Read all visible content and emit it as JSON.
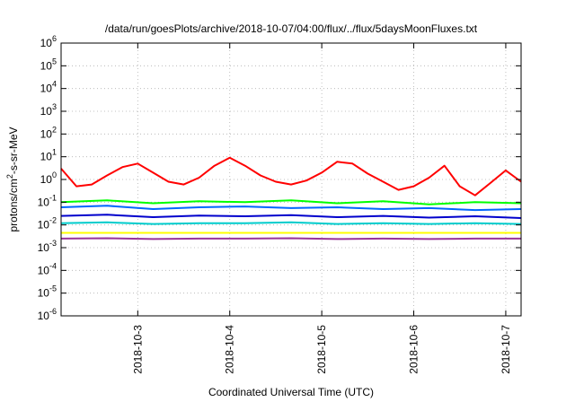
{
  "chart_data": {
    "type": "line",
    "title": "/data/run/goesPlots/archive/2018-10-07/04:00/flux/../flux/5daysMoonFluxes.txt",
    "xlabel": "Coordinated Universal Time (UTC)",
    "ylabel_parts": {
      "pre": "protons/cm",
      "sup": "2",
      "post": "-s-sr-MeV"
    },
    "x_scale": "time",
    "xlim": [
      "2018-10-02T04:00",
      "2018-10-07T04:00"
    ],
    "x_ticks": [
      {
        "date": "2018-10-03T00:00",
        "label": "2018-10-3"
      },
      {
        "date": "2018-10-04T00:00",
        "label": "2018-10-4"
      },
      {
        "date": "2018-10-05T00:00",
        "label": "2018-10-5"
      },
      {
        "date": "2018-10-06T00:00",
        "label": "2018-10-6"
      },
      {
        "date": "2018-10-07T00:00",
        "label": "2018-10-7"
      }
    ],
    "y_scale": "log",
    "ylim": [
      1e-06,
      1000000.0
    ],
    "y_ticks": [
      {
        "value": 1e-06,
        "base": "10",
        "exp": "-6"
      },
      {
        "value": 1e-05,
        "base": "10",
        "exp": "-5"
      },
      {
        "value": 0.0001,
        "base": "10",
        "exp": "-4"
      },
      {
        "value": 0.001,
        "base": "10",
        "exp": "-3"
      },
      {
        "value": 0.01,
        "base": "10",
        "exp": "-2"
      },
      {
        "value": 0.1,
        "base": "10",
        "exp": "-1"
      },
      {
        "value": 1.0,
        "base": "10",
        "exp": "0"
      },
      {
        "value": 10.0,
        "base": "10",
        "exp": "1"
      },
      {
        "value": 100.0,
        "base": "10",
        "exp": "2"
      },
      {
        "value": 1000.0,
        "base": "10",
        "exp": "3"
      },
      {
        "value": 10000.0,
        "base": "10",
        "exp": "4"
      },
      {
        "value": 100000.0,
        "base": "10",
        "exp": "5"
      },
      {
        "value": 1000000.0,
        "base": "10",
        "exp": "6"
      }
    ],
    "grid": true,
    "series": [
      {
        "color": "#ff0000",
        "x": [
          "2018-10-02T04:00",
          "2018-10-02T08:00",
          "2018-10-02T12:00",
          "2018-10-02T16:00",
          "2018-10-02T20:00",
          "2018-10-03T00:00",
          "2018-10-03T04:00",
          "2018-10-03T08:00",
          "2018-10-03T12:00",
          "2018-10-03T16:00",
          "2018-10-03T20:00",
          "2018-10-04T00:00",
          "2018-10-04T04:00",
          "2018-10-04T08:00",
          "2018-10-04T12:00",
          "2018-10-04T16:00",
          "2018-10-04T20:00",
          "2018-10-05T00:00",
          "2018-10-05T04:00",
          "2018-10-05T08:00",
          "2018-10-05T12:00",
          "2018-10-05T16:00",
          "2018-10-05T20:00",
          "2018-10-06T00:00",
          "2018-10-06T04:00",
          "2018-10-06T08:00",
          "2018-10-06T12:00",
          "2018-10-06T16:00",
          "2018-10-06T20:00",
          "2018-10-07T00:00",
          "2018-10-07T04:00"
        ],
        "y": [
          3.0,
          0.5,
          0.6,
          1.5,
          3.5,
          5.0,
          2.0,
          0.8,
          0.6,
          1.2,
          4.0,
          9.0,
          4.0,
          1.5,
          0.8,
          0.6,
          0.9,
          2.0,
          6.0,
          5.0,
          1.8,
          0.8,
          0.35,
          0.5,
          1.2,
          4.0,
          0.5,
          0.2,
          0.7,
          2.5,
          0.8
        ]
      },
      {
        "color": "#00ff00",
        "x": [
          "2018-10-02T04:00",
          "2018-10-02T16:00",
          "2018-10-03T04:00",
          "2018-10-03T16:00",
          "2018-10-04T04:00",
          "2018-10-04T16:00",
          "2018-10-05T04:00",
          "2018-10-05T16:00",
          "2018-10-06T04:00",
          "2018-10-06T16:00",
          "2018-10-07T04:00"
        ],
        "y": [
          0.1,
          0.12,
          0.09,
          0.11,
          0.1,
          0.12,
          0.09,
          0.11,
          0.08,
          0.1,
          0.09
        ]
      },
      {
        "color": "#0066ff",
        "x": [
          "2018-10-02T04:00",
          "2018-10-02T16:00",
          "2018-10-03T04:00",
          "2018-10-03T16:00",
          "2018-10-04T04:00",
          "2018-10-04T16:00",
          "2018-10-05T04:00",
          "2018-10-05T16:00",
          "2018-10-06T04:00",
          "2018-10-06T16:00",
          "2018-10-07T04:00"
        ],
        "y": [
          0.06,
          0.07,
          0.05,
          0.06,
          0.065,
          0.055,
          0.06,
          0.05,
          0.055,
          0.045,
          0.05
        ]
      },
      {
        "color": "#0000cc",
        "x": [
          "2018-10-02T04:00",
          "2018-10-02T16:00",
          "2018-10-03T04:00",
          "2018-10-03T16:00",
          "2018-10-04T04:00",
          "2018-10-04T16:00",
          "2018-10-05T04:00",
          "2018-10-05T16:00",
          "2018-10-06T04:00",
          "2018-10-06T16:00",
          "2018-10-07T04:00"
        ],
        "y": [
          0.025,
          0.028,
          0.022,
          0.026,
          0.024,
          0.027,
          0.022,
          0.025,
          0.021,
          0.024,
          0.02
        ]
      },
      {
        "color": "#00cccc",
        "x": [
          "2018-10-02T04:00",
          "2018-10-02T16:00",
          "2018-10-03T04:00",
          "2018-10-03T16:00",
          "2018-10-04T04:00",
          "2018-10-04T16:00",
          "2018-10-05T04:00",
          "2018-10-05T16:00",
          "2018-10-06T04:00",
          "2018-10-06T16:00",
          "2018-10-07T04:00"
        ],
        "y": [
          0.012,
          0.013,
          0.011,
          0.012,
          0.012,
          0.013,
          0.011,
          0.012,
          0.011,
          0.012,
          0.011
        ]
      },
      {
        "color": "#ffff00",
        "x": [
          "2018-10-02T04:00",
          "2018-10-07T04:00"
        ],
        "y": [
          0.0045,
          0.0045
        ]
      },
      {
        "color": "#993399",
        "x": [
          "2018-10-02T04:00",
          "2018-10-02T16:00",
          "2018-10-03T04:00",
          "2018-10-03T16:00",
          "2018-10-04T04:00",
          "2018-10-04T16:00",
          "2018-10-05T04:00",
          "2018-10-05T16:00",
          "2018-10-06T04:00",
          "2018-10-06T16:00",
          "2018-10-07T04:00"
        ],
        "y": [
          0.0025,
          0.0026,
          0.0024,
          0.0025,
          0.0025,
          0.0026,
          0.0024,
          0.0025,
          0.0024,
          0.0025,
          0.0025
        ]
      }
    ]
  }
}
